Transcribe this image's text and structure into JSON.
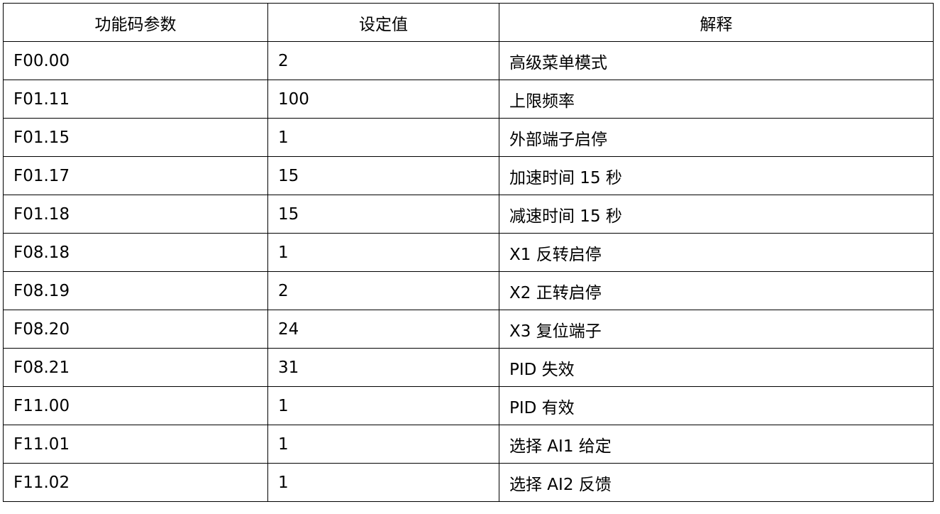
{
  "table": {
    "headers": [
      "功能码参数",
      "设定值",
      "解释"
    ],
    "rows": [
      [
        "F00.00",
        "2",
        "高级菜单模式"
      ],
      [
        "F01.11",
        "100",
        "上限频率"
      ],
      [
        "F01.15",
        "1",
        "外部端子启停"
      ],
      [
        "F01.17",
        "15",
        "加速时间 15 秒"
      ],
      [
        "F01.18",
        "15",
        "减速时间 15 秒"
      ],
      [
        "F08.18",
        "1",
        "X1 反转启停"
      ],
      [
        "F08.19",
        "2",
        "X2 正转启停"
      ],
      [
        "F08.20",
        "24",
        "X3 复位端子"
      ],
      [
        "F08.21",
        "31",
        "PID 失效"
      ],
      [
        "F11.00",
        "1",
        "PID 有效"
      ],
      [
        "F11.01",
        "1",
        "选择 AI1 给定"
      ],
      [
        "F11.02",
        "1",
        "选择 AI2 反馈"
      ]
    ]
  }
}
